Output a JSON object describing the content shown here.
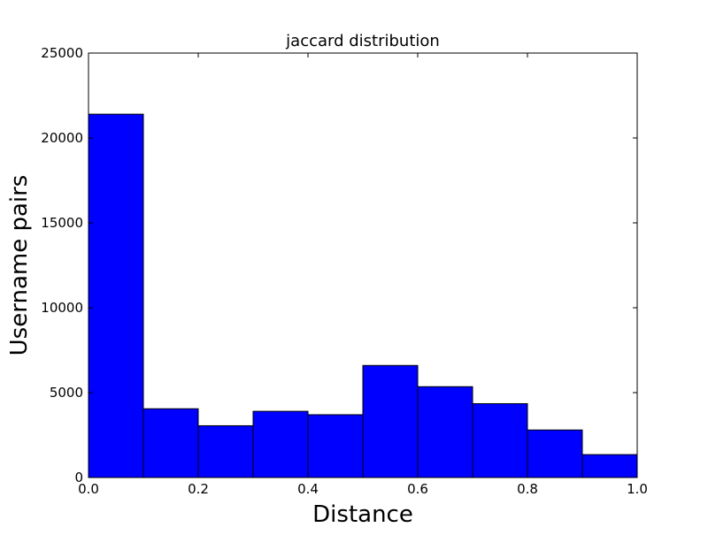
{
  "chart_data": {
    "type": "bar",
    "title": "jaccard distribution",
    "xlabel": "Distance",
    "ylabel": "Username pairs",
    "bins": [
      {
        "start": 0.0,
        "end": 0.1,
        "value": 21400
      },
      {
        "start": 0.1,
        "end": 0.2,
        "value": 4050
      },
      {
        "start": 0.2,
        "end": 0.3,
        "value": 3050
      },
      {
        "start": 0.3,
        "end": 0.4,
        "value": 3900
      },
      {
        "start": 0.4,
        "end": 0.5,
        "value": 3700
      },
      {
        "start": 0.5,
        "end": 0.6,
        "value": 6600
      },
      {
        "start": 0.6,
        "end": 0.7,
        "value": 5350
      },
      {
        "start": 0.7,
        "end": 0.8,
        "value": 4350
      },
      {
        "start": 0.8,
        "end": 0.9,
        "value": 2800
      },
      {
        "start": 0.9,
        "end": 1.0,
        "value": 1350
      }
    ],
    "xlim": [
      0.0,
      1.0
    ],
    "ylim": [
      0,
      25000
    ],
    "xticks": [
      "0.0",
      "0.2",
      "0.4",
      "0.6",
      "0.8",
      "1.0"
    ],
    "yticks": [
      "0",
      "5000",
      "10000",
      "15000",
      "20000",
      "25000"
    ],
    "grid": false,
    "bar_color": "#0000ff",
    "edge_color": "#000000"
  }
}
